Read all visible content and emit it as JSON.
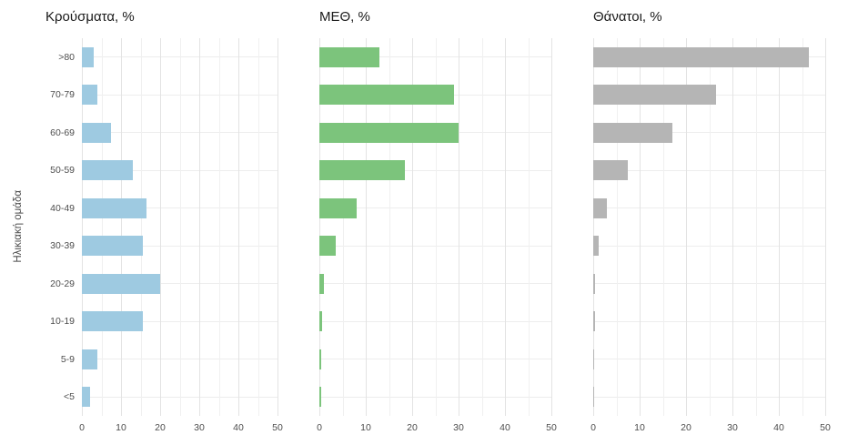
{
  "figure": {
    "y_axis_title": "Ηλικιακή ομάδα"
  },
  "chart_data": [
    {
      "type": "bar",
      "orientation": "horizontal",
      "title": "Κρούσματα, %",
      "bar_color": "#9ecae1",
      "categories": [
        ">80",
        "70-79",
        "60-69",
        "50-59",
        "40-49",
        "30-39",
        "20-29",
        "10-19",
        "5-9",
        "<5"
      ],
      "values": [
        3,
        4,
        7.5,
        13,
        16.5,
        15.5,
        20,
        15.5,
        4,
        2
      ],
      "xlim": [
        0,
        50
      ],
      "xticks": [
        0,
        10,
        20,
        30,
        40,
        50
      ],
      "xticks_minor": [
        5,
        15,
        25,
        35,
        45
      ],
      "grid": true,
      "legend": "none"
    },
    {
      "type": "bar",
      "orientation": "horizontal",
      "title": "ΜΕΘ, %",
      "bar_color": "#7cc47c",
      "categories": [
        ">80",
        "70-79",
        "60-69",
        "50-59",
        "40-49",
        "30-39",
        "20-29",
        "10-19",
        "5-9",
        "<5"
      ],
      "values": [
        13,
        29,
        30,
        18.5,
        8,
        3.5,
        1,
        0.5,
        0.3,
        0.3
      ],
      "xlim": [
        0,
        50
      ],
      "xticks": [
        0,
        10,
        20,
        30,
        40,
        50
      ],
      "xticks_minor": [
        5,
        15,
        25,
        35,
        45
      ],
      "grid": true,
      "legend": "none"
    },
    {
      "type": "bar",
      "orientation": "horizontal",
      "title": "Θάνατοι, %",
      "bar_color": "#b5b5b5",
      "categories": [
        ">80",
        "70-79",
        "60-69",
        "50-59",
        "40-49",
        "30-39",
        "20-29",
        "10-19",
        "5-9",
        "<5"
      ],
      "values": [
        46.5,
        26.5,
        17,
        7.5,
        3,
        1.2,
        0.3,
        0.3,
        0.1,
        0.1
      ],
      "xlim": [
        0,
        50
      ],
      "xticks": [
        0,
        10,
        20,
        30,
        40,
        50
      ],
      "xticks_minor": [
        5,
        15,
        25,
        35,
        45
      ],
      "grid": true,
      "legend": "none"
    }
  ]
}
